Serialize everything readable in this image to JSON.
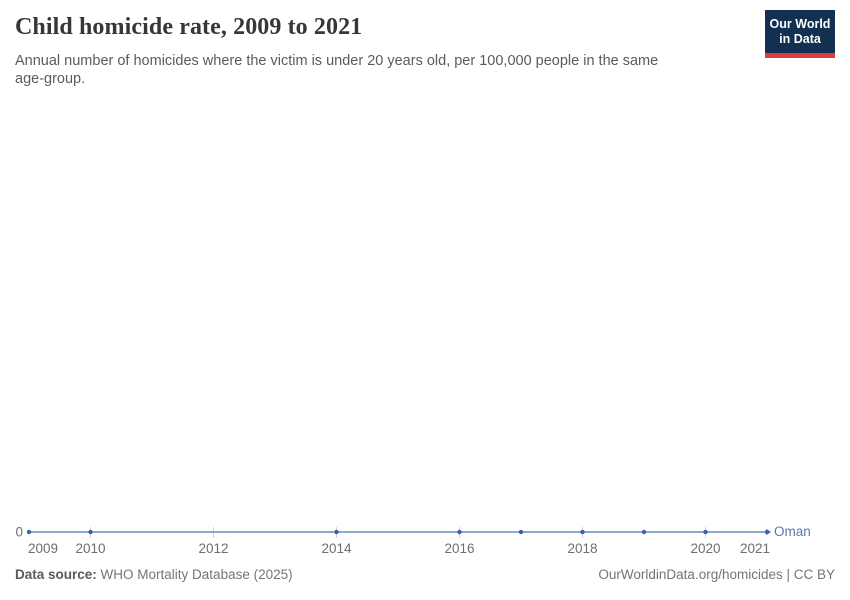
{
  "header": {
    "title": "Child homicide rate, 2009 to 2021",
    "subtitle": "Annual number of homicides where the victim is under 20 years old, per 100,000 people in the same age-group.",
    "logo": {
      "line1": "Our World",
      "line2": "in Data"
    }
  },
  "chart_data": {
    "type": "line",
    "title": "Child homicide rate, 2009 to 2021",
    "subtitle": "Annual number of homicides where the victim is under 20 years old, per 100,000 people in the same age-group.",
    "xlabel": "",
    "ylabel": "",
    "x_range": [
      2009,
      2021
    ],
    "ylim": [
      0,
      1
    ],
    "grid": false,
    "legend_position": "end-of-line",
    "y_ticks": [
      "0"
    ],
    "x_ticks_labeled": [
      2009,
      2010,
      2012,
      2014,
      2016,
      2018,
      2020,
      2021
    ],
    "series": [
      {
        "name": "Oman",
        "x": [
          2009,
          2010,
          2014,
          2016,
          2017,
          2018,
          2019,
          2020,
          2021
        ],
        "values": [
          0,
          0,
          0,
          0,
          0,
          0,
          0,
          0,
          0
        ]
      }
    ]
  },
  "footer": {
    "source_label": "Data source:",
    "source_text": "WHO Mortality Database (2025)",
    "link_text": "OurWorldinData.org/homicides | CC BY"
  },
  "colors": {
    "line": "#7f9cc9",
    "dot": "#3a62a6",
    "entity_label": "#5878b3",
    "axis_text": "#6e6e6e",
    "tick": "#d4d4d4",
    "logo_bg": "#12304f",
    "logo_stripe": "#d93d42"
  }
}
